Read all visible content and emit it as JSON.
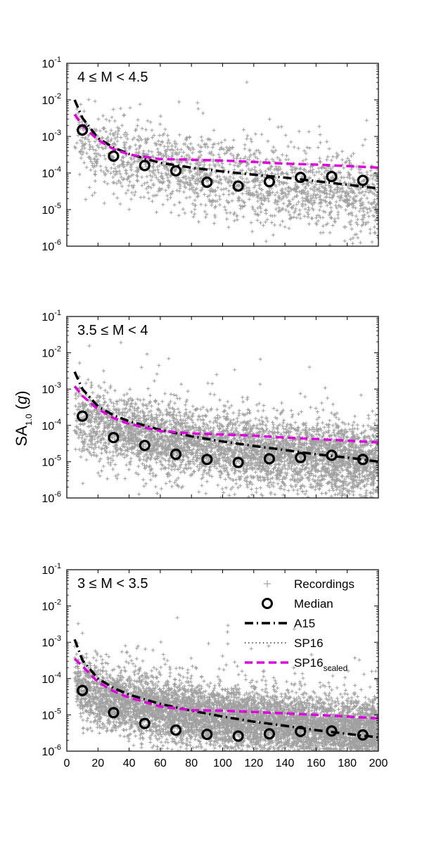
{
  "figure": {
    "ylabel_main": "SA",
    "ylabel_sub": "1.0",
    "ylabel_paren_open": " (",
    "ylabel_unit": "g",
    "ylabel_paren_close": ")"
  },
  "legend": {
    "recordings": "Recordings",
    "median": "Median",
    "a15": "A15",
    "sp16": "SP16",
    "sp16_scaled_main": "SP16",
    "sp16_scaled_sub": "scaled"
  },
  "colors": {
    "recordings": "#a0a0a0",
    "median": "#000000",
    "a15": "#000000",
    "sp16": "#000000",
    "sp16_scaled": "#e000e0"
  },
  "chart_data": [
    {
      "type": "scatter",
      "panel_label": "4 ≤ M < 4.5",
      "xlim": [
        0,
        200
      ],
      "ylim": [
        1e-06,
        0.1
      ],
      "yscale": "log",
      "x_ticks": [
        0,
        20,
        40,
        60,
        80,
        100,
        120,
        140,
        160,
        180,
        200
      ],
      "x_tick_labels_shown": false,
      "y_tick_exponents": [
        -6,
        -5,
        -4,
        -3,
        -2,
        -1
      ],
      "recordings_cloud": {
        "x": [
          5,
          200
        ],
        "median_log10_at_x": [
          -2.8,
          -4.6
        ],
        "spread_log10": 0.55
      },
      "median": {
        "x": [
          10,
          30,
          50,
          70,
          90,
          110,
          130,
          150,
          170,
          190
        ],
        "y": [
          0.0015,
          0.00029,
          0.00016,
          0.000115,
          5.6e-05,
          4.4e-05,
          5.8e-05,
          7.6e-05,
          8e-05,
          6.3e-05
        ]
      },
      "series": [
        {
          "name": "A15",
          "x": [
            5,
            10,
            20,
            30,
            40,
            60,
            80,
            100,
            120,
            140,
            160,
            180,
            200
          ],
          "y": [
            0.01,
            0.0032,
            0.0009,
            0.0005,
            0.00033,
            0.00019,
            0.00014,
            0.00011,
            9e-05,
            7.5e-05,
            6e-05,
            4.8e-05,
            3.8e-05
          ]
        },
        {
          "name": "SP16 scaled",
          "x": [
            5,
            10,
            20,
            30,
            40,
            60,
            80,
            100,
            120,
            140,
            160,
            180,
            200
          ],
          "y": [
            0.004,
            0.002,
            0.0008,
            0.00045,
            0.00032,
            0.00024,
            0.00023,
            0.00022,
            0.0002,
            0.00018,
            0.00017,
            0.000155,
            0.00014
          ]
        }
      ]
    },
    {
      "type": "scatter",
      "panel_label": "3.5 ≤ M < 4",
      "xlim": [
        0,
        200
      ],
      "ylim": [
        1e-06,
        0.1
      ],
      "yscale": "log",
      "x_ticks": [
        0,
        20,
        40,
        60,
        80,
        100,
        120,
        140,
        160,
        180,
        200
      ],
      "x_tick_labels_shown": false,
      "y_tick_exponents": [
        -6,
        -5,
        -4,
        -3,
        -2,
        -1
      ],
      "recordings_cloud": {
        "x": [
          5,
          200
        ],
        "median_log10_at_x": [
          -3.5,
          -5.0
        ],
        "spread_log10": 0.5
      },
      "median": {
        "x": [
          10,
          30,
          50,
          70,
          90,
          110,
          130,
          150,
          170,
          190
        ],
        "y": [
          0.00018,
          4.6e-05,
          2.8e-05,
          1.6e-05,
          1.15e-05,
          9.5e-06,
          1.2e-05,
          1.3e-05,
          1.5e-05,
          1.15e-05
        ]
      },
      "series": [
        {
          "name": "A15",
          "x": [
            5,
            10,
            20,
            30,
            40,
            60,
            80,
            100,
            120,
            140,
            160,
            180,
            200
          ],
          "y": [
            0.003,
            0.001,
            0.00033,
            0.00019,
            0.00013,
            7.5e-05,
            5e-05,
            3.6e-05,
            2.7e-05,
            2.1e-05,
            1.6e-05,
            1.3e-05,
            1e-05
          ]
        },
        {
          "name": "SP16 scaled",
          "x": [
            5,
            10,
            20,
            30,
            40,
            60,
            80,
            100,
            120,
            140,
            160,
            180,
            200
          ],
          "y": [
            0.0012,
            0.00065,
            0.00028,
            0.00016,
            0.00011,
            7e-05,
            6e-05,
            5.6e-05,
            5.2e-05,
            4.6e-05,
            4.2e-05,
            3.8e-05,
            3.4e-05
          ]
        }
      ]
    },
    {
      "type": "scatter",
      "panel_label": "3 ≤ M < 3.5",
      "xlim": [
        0,
        200
      ],
      "ylim": [
        1e-06,
        0.1
      ],
      "yscale": "log",
      "x_ticks": [
        0,
        20,
        40,
        60,
        80,
        100,
        120,
        140,
        160,
        180,
        200
      ],
      "x_tick_labels": [
        "0",
        "20",
        "40",
        "60",
        "80",
        "100",
        "120",
        "140",
        "160",
        "180",
        "200"
      ],
      "x_tick_labels_shown": true,
      "y_tick_exponents": [
        -6,
        -5,
        -4,
        -3,
        -2,
        -1
      ],
      "legend_position": "top-right",
      "recordings_cloud": {
        "x": [
          5,
          200
        ],
        "median_log10_at_x": [
          -4.0,
          -5.5
        ],
        "spread_log10": 0.45
      },
      "median": {
        "x": [
          10,
          30,
          50,
          70,
          90,
          110,
          130,
          150,
          170,
          190
        ],
        "y": [
          4.7e-05,
          1.15e-05,
          5.8e-06,
          3.8e-06,
          2.9e-06,
          2.6e-06,
          3e-06,
          3.5e-06,
          3.6e-06,
          2.8e-06
        ]
      },
      "series": [
        {
          "name": "A15",
          "x": [
            5,
            10,
            20,
            30,
            40,
            60,
            80,
            100,
            120,
            140,
            160,
            180,
            200
          ],
          "y": [
            0.0012,
            0.00032,
            0.0001,
            5.5e-05,
            3.6e-05,
            2e-05,
            1.3e-05,
            9e-06,
            6.5e-06,
            5e-06,
            3.8e-06,
            3e-06,
            2.4e-06
          ]
        },
        {
          "name": "SP16 scaled",
          "x": [
            5,
            10,
            20,
            30,
            40,
            60,
            80,
            100,
            120,
            140,
            160,
            180,
            200
          ],
          "y": [
            0.00035,
            0.00022,
            8e-05,
            4.5e-05,
            3e-05,
            1.7e-05,
            1.35e-05,
            1.3e-05,
            1.2e-05,
            1.1e-05,
            1e-05,
            9e-06,
            8e-06
          ]
        }
      ]
    }
  ]
}
